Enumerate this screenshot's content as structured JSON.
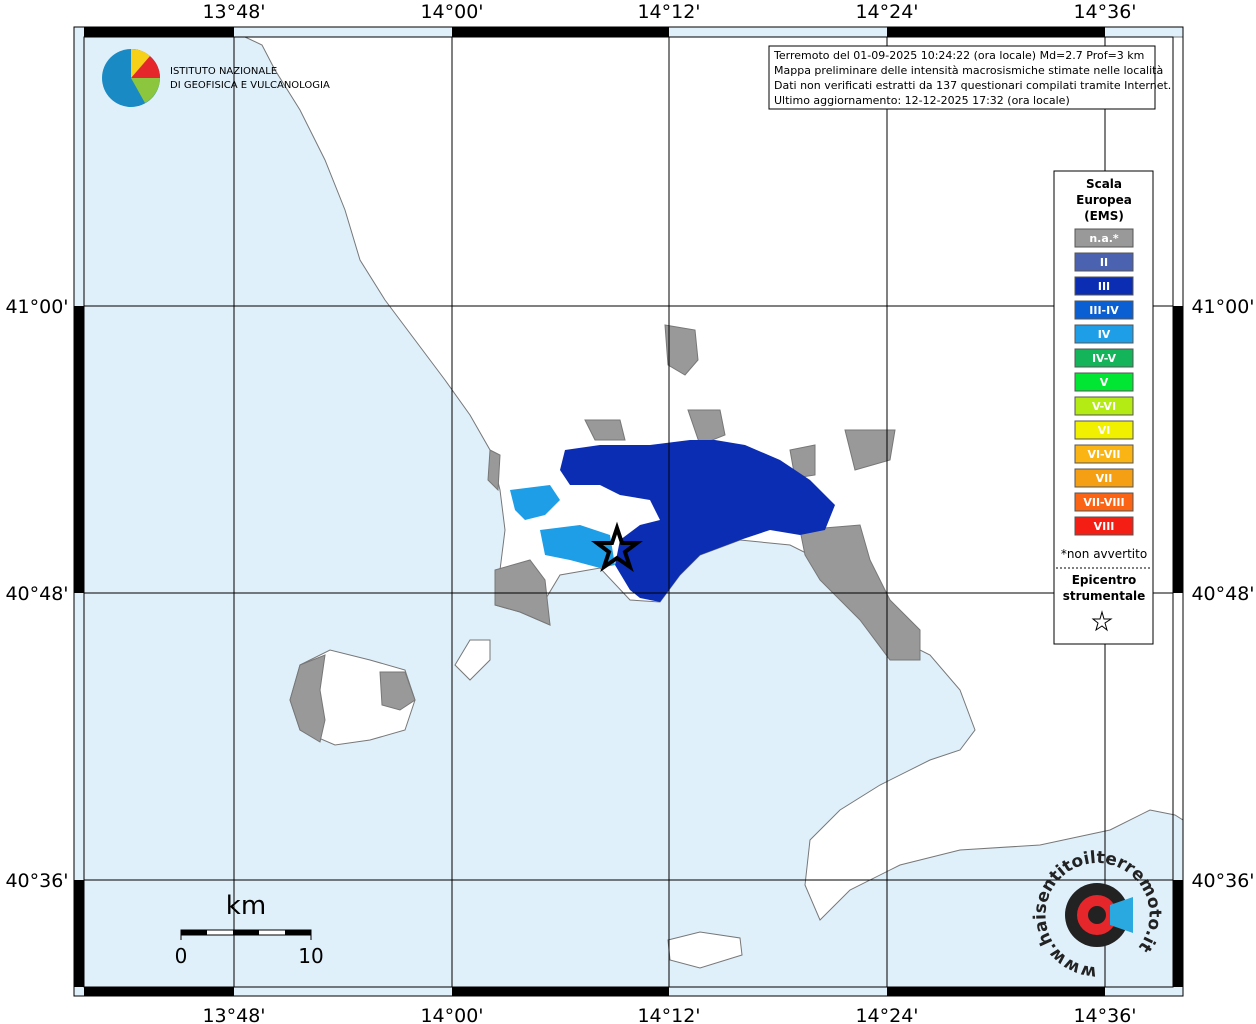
{
  "map": {
    "x_ticks": [
      "13°48'",
      "14°00'",
      "14°12'",
      "14°24'",
      "14°36'"
    ],
    "y_ticks": [
      "41°00'",
      "40°48'",
      "40°36'"
    ]
  },
  "logo": {
    "lines": [
      "ISTITUTO NAZIONALE",
      "DI GEOFISICA E VULCANOLOGIA"
    ]
  },
  "info_box": {
    "lines": [
      "Terremoto del 01-09-2025 10:24:22 (ora locale) Md=2.7 Prof=3 km",
      "Mappa preliminare delle intensità macrosismiche stimate nelle località",
      "Dati non verificati estratti da 137 questionari compilati tramite Internet.",
      "Ultimo aggiornamento: 12-12-2025 17:32 (ora locale)"
    ]
  },
  "legend": {
    "title": [
      "Scala",
      "Europea",
      "(EMS)"
    ],
    "classes": [
      {
        "label": "n.a.*",
        "color": "#999999"
      },
      {
        "label": "II",
        "color": "#4a62b0"
      },
      {
        "label": "III",
        "color": "#0a2db4"
      },
      {
        "label": "III-IV",
        "color": "#0a5fd2"
      },
      {
        "label": "IV",
        "color": "#1e9ee6"
      },
      {
        "label": "IV-V",
        "color": "#14b45a"
      },
      {
        "label": "V",
        "color": "#00e632"
      },
      {
        "label": "V-VI",
        "color": "#b4eb14"
      },
      {
        "label": "VI",
        "color": "#f0f000"
      },
      {
        "label": "VI-VII",
        "color": "#fab414"
      },
      {
        "label": "VII",
        "color": "#f5a014"
      },
      {
        "label": "VII-VIII",
        "color": "#fa6414"
      },
      {
        "label": "VIII",
        "color": "#f51e14"
      }
    ],
    "note": "*non avvertito",
    "epicenter": [
      "Epicentro",
      "strumentale"
    ]
  },
  "scale_bar": {
    "unit": "km",
    "labels": [
      "0",
      "10"
    ]
  },
  "badge": {
    "text": "www.haisentitoilterremoto.it"
  }
}
